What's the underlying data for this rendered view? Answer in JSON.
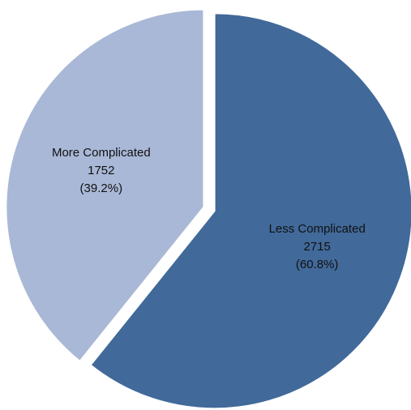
{
  "chart_data": {
    "type": "pie",
    "categories": [
      "Less Complicated",
      "More Complicated"
    ],
    "values": [
      2715,
      1752
    ],
    "percentages": [
      60.8,
      39.2
    ],
    "percentage_labels": [
      "(60.8%)",
      "(39.2%)"
    ],
    "colors": [
      "#41699a",
      "#a9b8d6"
    ],
    "start_angle": 0,
    "direction": "clockwise",
    "exploded": true
  }
}
